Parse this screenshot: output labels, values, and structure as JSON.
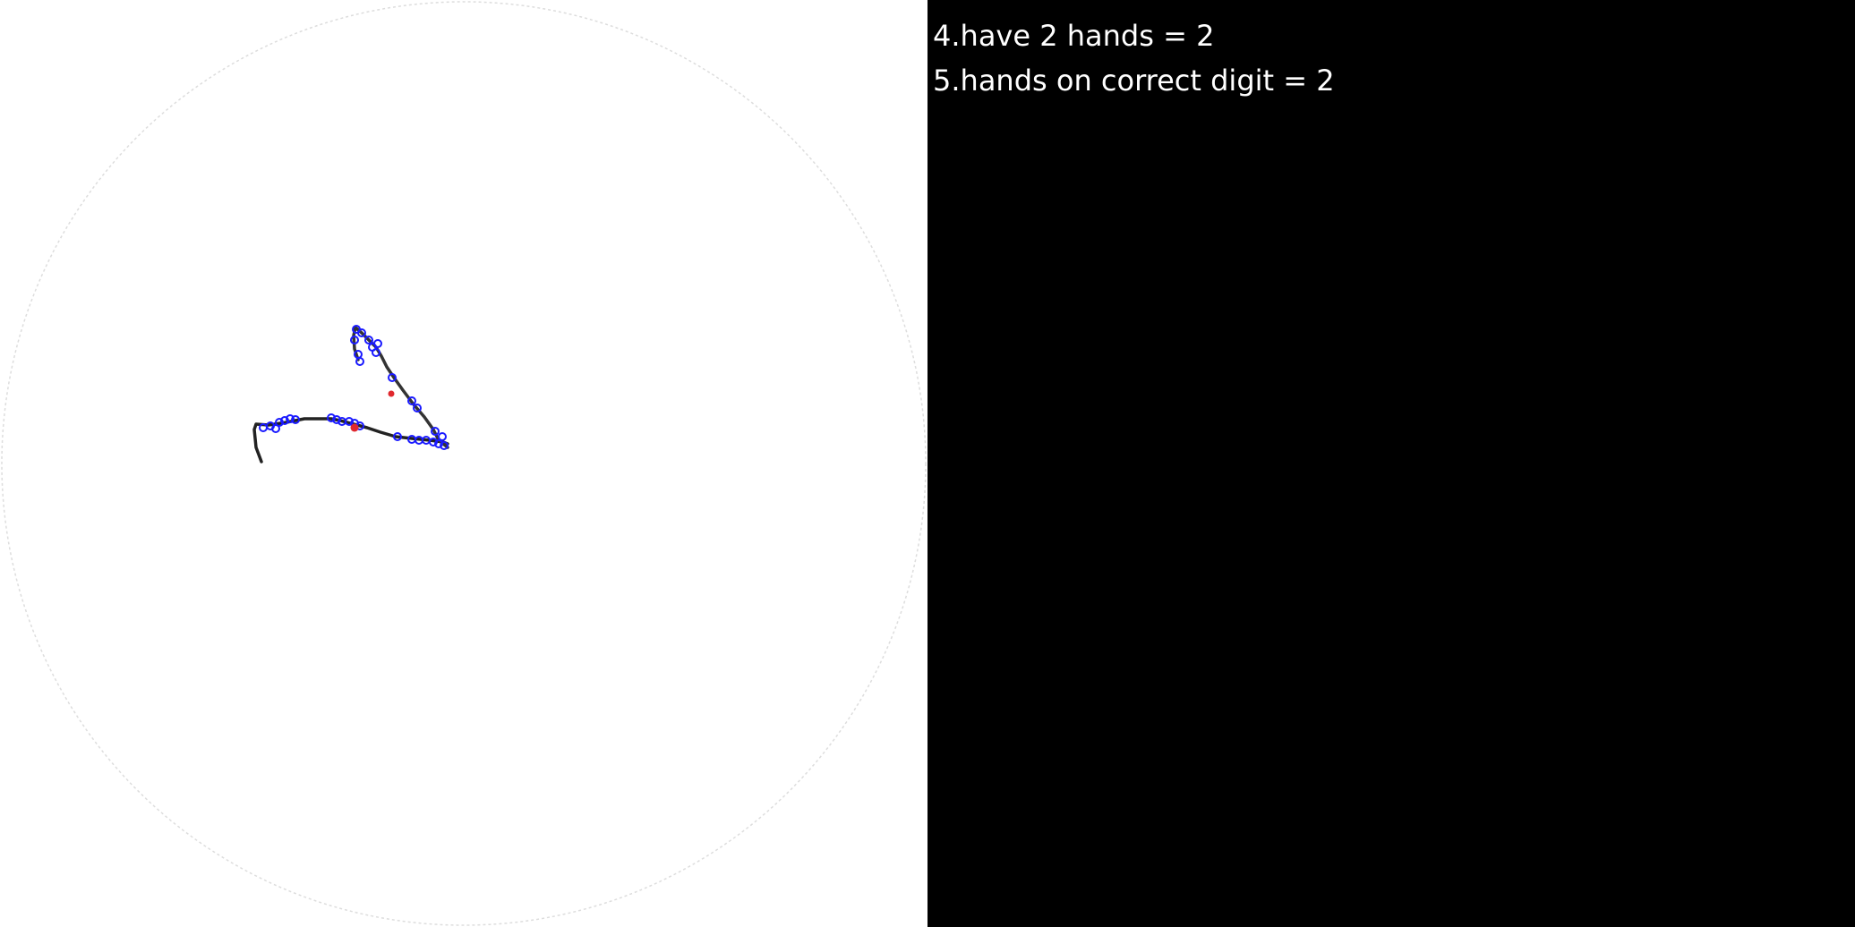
{
  "scores": [
    {
      "text": "4.have 2 hands = 2"
    },
    {
      "text": "5.hands on correct digit = 2"
    }
  ],
  "colors": {
    "background": "#000000",
    "canvas": "#ffffff",
    "text": "#ffffff",
    "stroke": "#222222",
    "sample_point": "#1a1aff",
    "marker": "#e0282e",
    "clock_outline": "#dddddd"
  }
}
